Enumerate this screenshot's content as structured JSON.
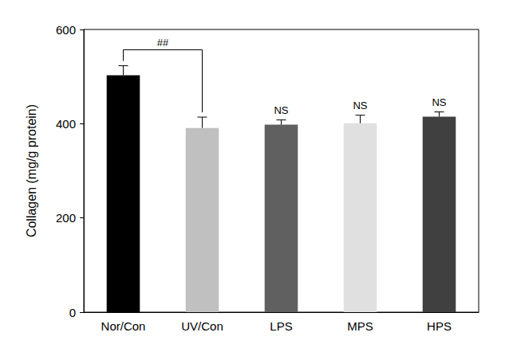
{
  "chart_data": {
    "type": "bar",
    "y_label": "Collagen (mg/g protein)",
    "categories": [
      "Nor/Con",
      "UV/Con",
      "LPS",
      "MPS",
      "HPS"
    ],
    "values": [
      503,
      391,
      398,
      401,
      415
    ],
    "errors": [
      20,
      23,
      10,
      17,
      10
    ],
    "colors": [
      "#000000",
      "#c0c0c0",
      "#606060",
      "#e0e0e0",
      "#404040"
    ],
    "ylim": [
      0,
      600
    ],
    "yticks": [
      0,
      200,
      400,
      600
    ],
    "grid": false,
    "annotations": [
      {
        "text": "##",
        "categories": [
          "Nor/Con",
          "UV/Con"
        ]
      },
      {
        "text": "NS",
        "categories": [
          "LPS"
        ]
      },
      {
        "text": "NS",
        "categories": [
          "MPS"
        ]
      },
      {
        "text": "NS",
        "categories": [
          "HPS"
        ]
      }
    ]
  }
}
